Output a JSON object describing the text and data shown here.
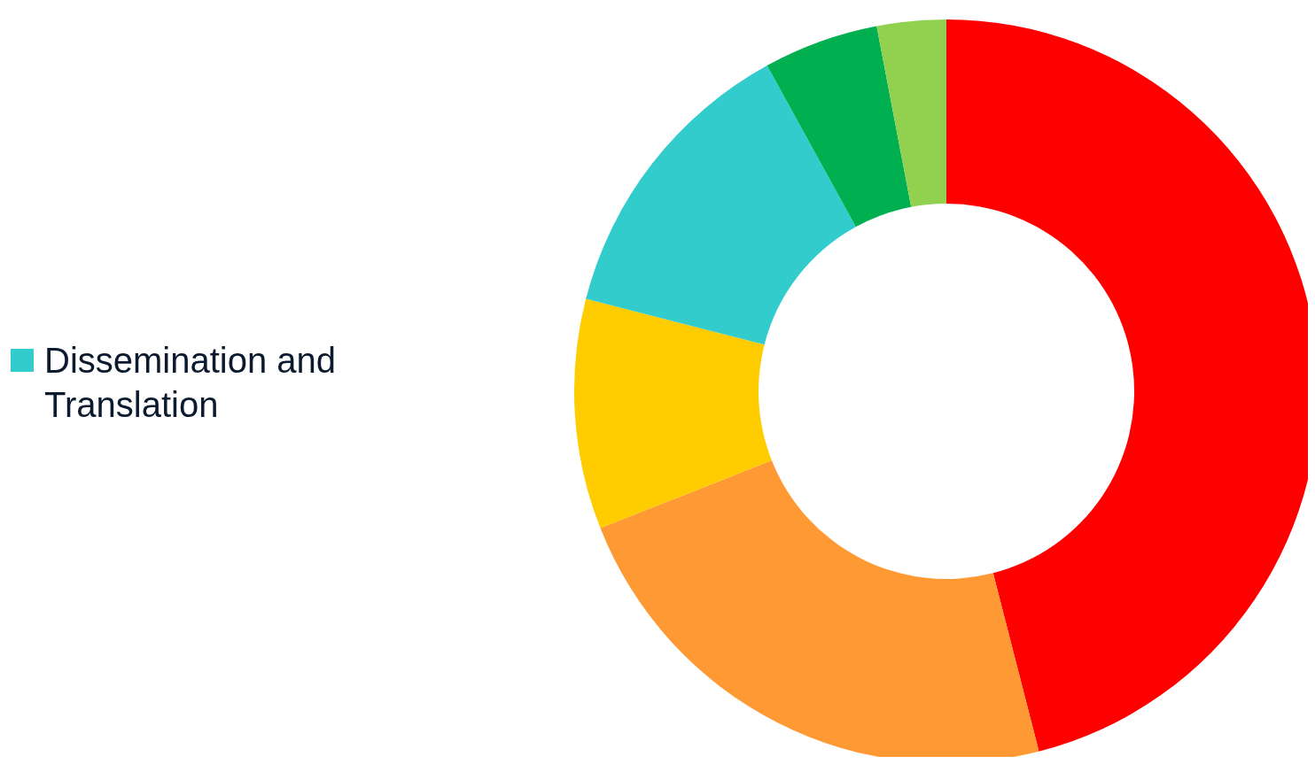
{
  "chart_data": {
    "type": "donut",
    "categories": [
      null,
      null,
      null,
      "Dissemination and Translation",
      null,
      null
    ],
    "values": [
      46,
      23,
      10,
      13,
      5,
      3
    ],
    "colors": [
      "#ff0000",
      "#ff9933",
      "#ffcc00",
      "#33cccc",
      "#00b050",
      "#92d050"
    ],
    "legend": "left"
  }
}
